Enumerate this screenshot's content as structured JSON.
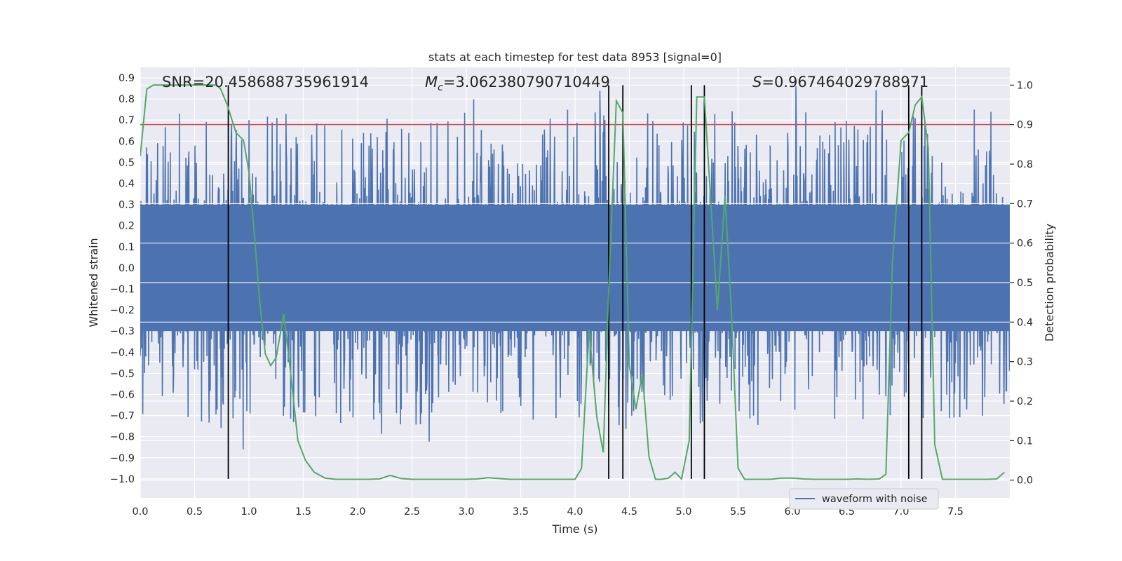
{
  "chart_data": {
    "type": "line",
    "title": "stats at each timestep for test data 8953 [signal=0]",
    "xlabel": "Time (s)",
    "ylabel": "Whitened strain",
    "ylabel_right": "Detection probability",
    "xlim": [
      0.0,
      8.0
    ],
    "ylim": [
      -1.09,
      0.95
    ],
    "ylim_right": [
      -0.045,
      1.045
    ],
    "x_ticks": [
      0.0,
      0.5,
      1.0,
      1.5,
      2.0,
      2.5,
      3.0,
      3.5,
      4.0,
      4.5,
      5.0,
      5.5,
      6.0,
      6.5,
      7.0,
      7.5
    ],
    "x_tick_labels": [
      "0.0",
      "0.5",
      "1.0",
      "1.5",
      "2.0",
      "2.5",
      "3.0",
      "3.5",
      "4.0",
      "4.5",
      "5.0",
      "5.5",
      "6.0",
      "6.5",
      "7.0",
      "7.5"
    ],
    "y_ticks": [
      0.9,
      0.8,
      0.7,
      0.6,
      0.5,
      0.4,
      0.3,
      0.2,
      0.1,
      0.0,
      -0.1,
      -0.2,
      -0.3,
      -0.4,
      -0.5,
      -0.6,
      -0.7,
      -0.8,
      -0.9,
      -1.0
    ],
    "y_tick_labels": [
      "0.9",
      "0.8",
      "0.7",
      "0.6",
      "0.5",
      "0.4",
      "0.3",
      "0.2",
      "0.1",
      "0.0",
      "−0.1",
      "−0.2",
      "−0.3",
      "−0.4",
      "−0.5",
      "−0.6",
      "−0.7",
      "−0.8",
      "−0.9",
      "−1.0"
    ],
    "y_right_ticks": [
      1.0,
      0.9,
      0.8,
      0.7,
      0.6,
      0.5,
      0.4,
      0.3,
      0.2,
      0.1,
      0.0
    ],
    "y_right_tick_labels": [
      "1.0",
      "0.9",
      "0.8",
      "0.7",
      "0.6",
      "0.5",
      "0.4",
      "0.3",
      "0.2",
      "0.1",
      "0.0"
    ],
    "annotations": {
      "snr": "SNR=20.458688735961914",
      "mc_symbol": "M",
      "mc_sub": "c",
      "mc_value": "=3.062380790710449",
      "s_symbol": "S",
      "s_value": "=0.967464029788971"
    },
    "legend": {
      "label": "waveform with noise",
      "location": "lower-right"
    },
    "waveform": {
      "name": "waveform with noise",
      "color": "#4c72b0",
      "samples": 2400,
      "core_amplitude": 0.3,
      "spike_range": [
        -1.0,
        0.86
      ]
    },
    "threshold": {
      "value": 0.9,
      "axis": "right",
      "color": "#c44e52"
    },
    "markers": {
      "times": [
        0.81,
        4.31,
        4.44,
        5.07,
        5.19,
        7.07,
        7.19
      ],
      "y_range": [
        -1.0,
        0.9
      ],
      "color": "#000000"
    },
    "probability": {
      "name": "Detection probability",
      "color": "#55a868",
      "x": [
        0.0,
        0.06,
        0.12,
        0.2,
        0.3,
        0.4,
        0.5,
        0.6,
        0.7,
        0.74,
        0.8,
        0.88,
        0.95,
        1.0,
        1.05,
        1.1,
        1.15,
        1.2,
        1.25,
        1.32,
        1.38,
        1.45,
        1.52,
        1.6,
        1.7,
        1.8,
        1.9,
        2.0,
        2.1,
        2.2,
        2.3,
        2.4,
        2.5,
        2.6,
        2.7,
        2.8,
        2.9,
        3.0,
        3.1,
        3.2,
        3.3,
        3.4,
        3.5,
        3.6,
        3.7,
        3.8,
        3.9,
        4.0,
        4.06,
        4.13,
        4.2,
        4.26,
        4.31,
        4.38,
        4.44,
        4.5,
        4.56,
        4.62,
        4.68,
        4.74,
        4.8,
        4.86,
        4.92,
        4.98,
        5.05,
        5.12,
        5.19,
        5.25,
        5.31,
        5.38,
        5.44,
        5.5,
        5.56,
        5.62,
        5.7,
        5.8,
        5.9,
        6.0,
        6.1,
        6.2,
        6.3,
        6.4,
        6.5,
        6.6,
        6.7,
        6.8,
        6.86,
        6.92,
        7.0,
        7.07,
        7.13,
        7.19,
        7.25,
        7.31,
        7.38,
        7.5,
        7.6,
        7.7,
        7.8,
        7.88,
        7.95
      ],
      "values": [
        0.82,
        0.99,
        1.0,
        1.0,
        1.0,
        1.0,
        1.0,
        1.0,
        1.0,
        0.99,
        0.95,
        0.88,
        0.86,
        0.78,
        0.62,
        0.45,
        0.32,
        0.29,
        0.31,
        0.42,
        0.28,
        0.1,
        0.05,
        0.02,
        0.005,
        0.002,
        0.002,
        0.002,
        0.002,
        0.003,
        0.012,
        0.004,
        0.002,
        0.002,
        0.002,
        0.002,
        0.002,
        0.002,
        0.003,
        0.006,
        0.004,
        0.002,
        0.002,
        0.002,
        0.002,
        0.002,
        0.002,
        0.002,
        0.03,
        0.38,
        0.16,
        0.07,
        0.48,
        0.96,
        0.93,
        0.29,
        0.18,
        0.27,
        0.06,
        0.002,
        0.002,
        0.005,
        0.02,
        0.003,
        0.1,
        0.97,
        0.97,
        0.7,
        0.43,
        0.72,
        0.42,
        0.03,
        0.002,
        0.002,
        0.002,
        0.002,
        0.005,
        0.005,
        0.003,
        0.002,
        0.002,
        0.002,
        0.002,
        0.003,
        0.002,
        0.003,
        0.015,
        0.55,
        0.86,
        0.88,
        0.95,
        0.97,
        0.84,
        0.09,
        0.002,
        0.002,
        0.002,
        0.002,
        0.002,
        0.003,
        0.02
      ]
    }
  }
}
